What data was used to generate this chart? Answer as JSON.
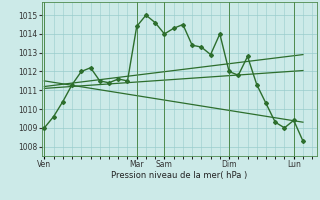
{
  "bg_color": "#cceae8",
  "grid_color": "#99cccc",
  "line_color": "#2d6e2d",
  "marker_color": "#2d6e2d",
  "ylabel_ticks": [
    1008,
    1009,
    1010,
    1011,
    1012,
    1013,
    1014,
    1015
  ],
  "ylim": [
    1007.5,
    1015.7
  ],
  "xlabel": "Pression niveau de la mer( hPa )",
  "day_labels": [
    "Ven",
    "Mar",
    "Sam",
    "Dim",
    "Lun"
  ],
  "day_positions": [
    0,
    10,
    13,
    20,
    27
  ],
  "xlim": [
    -0.3,
    29.5
  ],
  "main_x": [
    0,
    1,
    2,
    3,
    4,
    5,
    6,
    7,
    8,
    9,
    10,
    11,
    12,
    13,
    14,
    15,
    16,
    17,
    18,
    19,
    20,
    21,
    22,
    23,
    24,
    25,
    26,
    27,
    28
  ],
  "main_y": [
    1009.0,
    1009.6,
    1010.4,
    1011.3,
    1012.0,
    1012.2,
    1011.5,
    1011.4,
    1011.6,
    1011.5,
    1014.4,
    1015.0,
    1014.6,
    1014.0,
    1014.3,
    1014.5,
    1013.4,
    1013.3,
    1012.9,
    1014.0,
    1012.0,
    1011.8,
    1012.8,
    1011.3,
    1010.3,
    1009.3,
    1009.0,
    1009.4,
    1008.3
  ],
  "trend1_x": [
    0,
    28
  ],
  "trend1_y": [
    1011.2,
    1012.9
  ],
  "trend2_x": [
    0,
    28
  ],
  "trend2_y": [
    1011.1,
    1012.05
  ],
  "trend3_x": [
    0,
    28
  ],
  "trend3_y": [
    1011.5,
    1009.3
  ],
  "vline_positions": [
    0,
    10,
    13,
    20,
    27
  ],
  "minor_grid_x_count": 30,
  "figsize": [
    3.2,
    2.0
  ],
  "dpi": 100
}
